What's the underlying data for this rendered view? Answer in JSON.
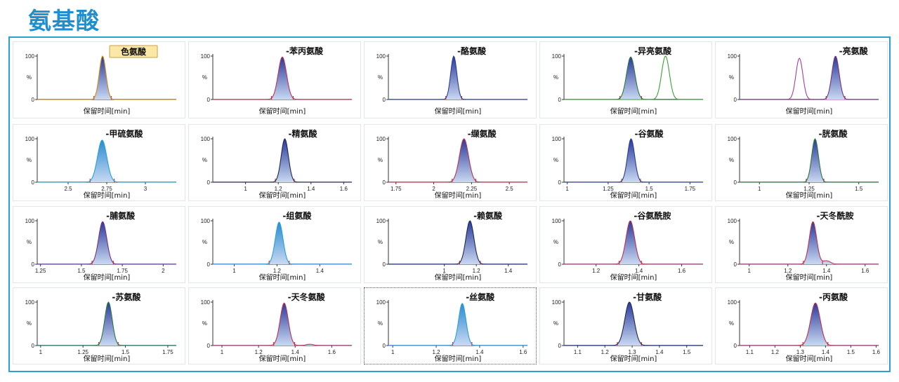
{
  "title": "氨基酸",
  "chart_data": [
    {
      "type": "line",
      "title": "色氨酸",
      "xlabel": "保留时间[min]",
      "ylabel": "%",
      "ytick_labels": [
        "0",
        "100"
      ],
      "xlim": [
        0,
        1
      ],
      "xticks": [],
      "xtick_labels": [],
      "label_boxed": true,
      "series": [
        {
          "color": "#2a3a9a",
          "peaks": [
            {
              "rt": 0.47,
              "sigma": 0.024,
              "height": 100
            }
          ],
          "fill": true,
          "stroke": "#d08a10"
        }
      ]
    },
    {
      "type": "line",
      "title": "苯丙氨酸",
      "xlabel": "保留时间[min]",
      "ylabel": "%",
      "ytick_labels": [
        "0",
        "100"
      ],
      "xlim": [
        0,
        1
      ],
      "xticks": [],
      "xtick_labels": [],
      "series": [
        {
          "color": "#2a3a9a",
          "peaks": [
            {
              "rt": 0.5,
              "sigma": 0.03,
              "height": 98
            }
          ],
          "fill": true,
          "stroke": "#c03050"
        }
      ]
    },
    {
      "type": "line",
      "title": "酪氨酸",
      "xlabel": "保留时间[min]",
      "ylabel": "%",
      "ytick_labels": [
        "0",
        "100"
      ],
      "xlim": [
        0,
        1
      ],
      "xticks": [],
      "xtick_labels": [],
      "series": [
        {
          "color": "#2a3a9a",
          "peaks": [
            {
              "rt": 0.47,
              "sigma": 0.022,
              "height": 100
            }
          ],
          "fill": true,
          "stroke": "#2a3a9a"
        }
      ]
    },
    {
      "type": "line",
      "title": "异亮氨酸",
      "xlabel": "保留时间[min]",
      "ylabel": "%",
      "ytick_labels": [
        "0",
        "100"
      ],
      "xlim": [
        0,
        1
      ],
      "xticks": [],
      "xtick_labels": [],
      "series": [
        {
          "color": "#2a3a9a",
          "peaks": [
            {
              "rt": 0.48,
              "sigma": 0.03,
              "height": 98
            }
          ],
          "fill": true,
          "stroke": "#2a7a3a"
        },
        {
          "color": "#3aa03a",
          "peaks": [
            {
              "rt": 0.73,
              "sigma": 0.028,
              "height": 100
            }
          ],
          "fill": false,
          "stroke": "#3aa03a"
        }
      ]
    },
    {
      "type": "line",
      "title": "亮氨酸",
      "xlabel": "保留时间[min]",
      "ylabel": "%",
      "ytick_labels": [
        "0",
        "100"
      ],
      "xlim": [
        0,
        1
      ],
      "xticks": [],
      "xtick_labels": [],
      "series": [
        {
          "color": "#a040a0",
          "peaks": [
            {
              "rt": 0.43,
              "sigma": 0.025,
              "height": 95
            }
          ],
          "fill": false,
          "stroke": "#a040a0"
        },
        {
          "color": "#2a3a9a",
          "peaks": [
            {
              "rt": 0.69,
              "sigma": 0.026,
              "height": 100
            }
          ],
          "fill": true,
          "stroke": "#7a3080"
        }
      ]
    },
    {
      "type": "line",
      "title": "甲硫氨酸",
      "xlabel": "保留时间[min]",
      "ylabel": "%",
      "ytick_labels": [
        "0",
        "100"
      ],
      "xlim": [
        2.3,
        3.2
      ],
      "xticks": [
        2.5,
        2.75,
        3
      ],
      "xtick_labels": [
        "2.5",
        "2.75",
        "3"
      ],
      "series": [
        {
          "color": "#2a8ad0",
          "peaks": [
            {
              "rt": 2.72,
              "sigma": 0.03,
              "height": 97
            }
          ],
          "fill": true,
          "stroke": "#28a0d8"
        }
      ]
    },
    {
      "type": "line",
      "title": "精氨酸",
      "xlabel": "保留时间[min]",
      "ylabel": "%",
      "ytick_labels": [
        "0",
        "100"
      ],
      "xlim": [
        0.8,
        1.65
      ],
      "xticks": [
        1,
        1.2,
        1.4,
        1.6
      ],
      "xtick_labels": [
        "1",
        "1.2",
        "1.4",
        "1.6"
      ],
      "series": [
        {
          "color": "#2a3a9a",
          "peaks": [
            {
              "rt": 1.24,
              "sigma": 0.022,
              "height": 100
            }
          ],
          "fill": true,
          "stroke": "#202850"
        }
      ]
    },
    {
      "type": "line",
      "title": "缬氨酸",
      "xlabel": "保留时间[min]",
      "ylabel": "%",
      "ytick_labels": [
        "0",
        "100"
      ],
      "xlim": [
        1.7,
        2.62
      ],
      "xticks": [
        1.75,
        2,
        2.25,
        2.5
      ],
      "xtick_labels": [
        "1.75",
        "2",
        "2.25",
        "2.5"
      ],
      "series": [
        {
          "color": "#2a3a9a",
          "peaks": [
            {
              "rt": 2.2,
              "sigma": 0.03,
              "height": 100
            }
          ],
          "fill": true,
          "stroke": "#c03050"
        }
      ]
    },
    {
      "type": "line",
      "title": "谷氨酸",
      "xlabel": "保留时间[min]",
      "ylabel": "%",
      "ytick_labels": [
        "0",
        "100"
      ],
      "xlim": [
        0.98,
        1.83
      ],
      "xticks": [
        1,
        1.25,
        1.5,
        1.75
      ],
      "xtick_labels": [
        "1",
        "1.25",
        "1.5",
        "1.75"
      ],
      "series": [
        {
          "color": "#2a3a9a",
          "peaks": [
            {
              "rt": 1.39,
              "sigma": 0.022,
              "height": 100
            }
          ],
          "fill": true,
          "stroke": "#2a3a9a"
        }
      ]
    },
    {
      "type": "line",
      "title": "胱氨酸",
      "xlabel": "保留时间[min]",
      "ylabel": "%",
      "ytick_labels": [
        "0",
        "100"
      ],
      "xlim": [
        0.9,
        1.6
      ],
      "xticks": [
        1,
        1.25,
        1.5
      ],
      "xtick_labels": [
        "1",
        "1.25",
        "1.5"
      ],
      "series": [
        {
          "color": "#2a3a9a",
          "peaks": [
            {
              "rt": 1.28,
              "sigma": 0.017,
              "height": 100
            }
          ],
          "fill": true,
          "stroke": "#2a7a3a"
        }
      ]
    },
    {
      "type": "line",
      "title": "脯氨酸",
      "xlabel": "保留时间[min]",
      "ylabel": "%",
      "ytick_labels": [
        "0",
        "100"
      ],
      "xlim": [
        1.23,
        2.08
      ],
      "xticks": [
        1.25,
        1.5,
        1.75,
        2
      ],
      "xtick_labels": [
        "1.25",
        "1.5",
        "1.75",
        "2"
      ],
      "series": [
        {
          "color": "#2a3a9a",
          "peaks": [
            {
              "rt": 1.63,
              "sigma": 0.025,
              "height": 98
            }
          ],
          "fill": true,
          "stroke": "#7a3080"
        }
      ]
    },
    {
      "type": "line",
      "title": "组氨酸",
      "xlabel": "保留时间[min]",
      "ylabel": "%",
      "ytick_labels": [
        "0",
        "100"
      ],
      "xlim": [
        0.9,
        1.55
      ],
      "xticks": [
        1,
        1.2,
        1.4
      ],
      "xtick_labels": [
        "1",
        "1.2",
        "1.4"
      ],
      "series": [
        {
          "color": "#2a8ad0",
          "peaks": [
            {
              "rt": 1.21,
              "sigma": 0.018,
              "height": 97
            }
          ],
          "fill": true,
          "stroke": "#28a0d8"
        }
      ]
    },
    {
      "type": "line",
      "title": "赖氨酸",
      "xlabel": "保留时间[min]",
      "ylabel": "%",
      "ytick_labels": [
        "0",
        "100"
      ],
      "xlim": [
        0.65,
        1.52
      ],
      "xticks": [
        1,
        1.2,
        1.4
      ],
      "xtick_labels": [
        "1",
        "1.2",
        "1.4"
      ],
      "series": [
        {
          "color": "#2a3a9a",
          "peaks": [
            {
              "rt": 1.16,
              "sigma": 0.025,
              "height": 100
            }
          ],
          "fill": true,
          "stroke": "#202850"
        }
      ]
    },
    {
      "type": "line",
      "title": "谷氨酰胺",
      "xlabel": "保留时间[min]",
      "ylabel": "%",
      "ytick_labels": [
        "0",
        "100"
      ],
      "xlim": [
        1.05,
        1.7
      ],
      "xticks": [
        1.2,
        1.4,
        1.6
      ],
      "xtick_labels": [
        "1.2",
        "1.4",
        "1.6"
      ],
      "series": [
        {
          "color": "#2a3a9a",
          "peaks": [
            {
              "rt": 1.36,
              "sigma": 0.02,
              "height": 100
            }
          ],
          "fill": true,
          "stroke": "#c03050"
        }
      ]
    },
    {
      "type": "line",
      "title": "天冬酰胺",
      "xlabel": "保留时间[min]",
      "ylabel": "%",
      "ytick_labels": [
        "0",
        "100"
      ],
      "xlim": [
        0.95,
        1.67
      ],
      "xticks": [
        1,
        1.2,
        1.4,
        1.6
      ],
      "xtick_labels": [
        "1",
        "1.2",
        "1.4",
        "1.6"
      ],
      "series": [
        {
          "color": "#2a3a9a",
          "peaks": [
            {
              "rt": 1.33,
              "sigma": 0.019,
              "height": 98
            },
            {
              "rt": 1.4,
              "sigma": 0.02,
              "height": 8
            }
          ],
          "fill": true,
          "stroke": "#c03050"
        }
      ]
    },
    {
      "type": "line",
      "title": "苏氨酸",
      "xlabel": "保留时间[min]",
      "ylabel": "%",
      "ytick_labels": [
        "0",
        "100"
      ],
      "xlim": [
        0.98,
        1.8
      ],
      "xticks": [
        1,
        1.25,
        1.5,
        1.75
      ],
      "xtick_labels": [
        "1",
        "1.25",
        "1.5",
        "1.75"
      ],
      "series": [
        {
          "color": "#2a3a9a",
          "peaks": [
            {
              "rt": 1.4,
              "sigma": 0.022,
              "height": 100
            }
          ],
          "fill": true,
          "stroke": "#2a7a3a"
        }
      ]
    },
    {
      "type": "line",
      "title": "天冬氨酸",
      "xlabel": "保留时间[min]",
      "ylabel": "%",
      "ytick_labels": [
        "0",
        "100"
      ],
      "xlim": [
        0.95,
        1.71
      ],
      "xticks": [
        1,
        1.2,
        1.4,
        1.6
      ],
      "xtick_labels": [
        "1",
        "1.2",
        "1.4",
        "1.6"
      ],
      "series": [
        {
          "color": "#2a3a9a",
          "peaks": [
            {
              "rt": 1.34,
              "sigma": 0.022,
              "height": 98
            },
            {
              "rt": 1.48,
              "sigma": 0.02,
              "height": 3
            }
          ],
          "fill": true,
          "stroke": "#c03050"
        }
      ]
    },
    {
      "type": "line",
      "title": "丝氨酸",
      "xlabel": "保留时间[min]",
      "ylabel": "%",
      "ytick_labels": [
        "0",
        "100"
      ],
      "xlim": [
        0.98,
        1.62
      ],
      "xticks": [
        1,
        1.2,
        1.4,
        1.6
      ],
      "xtick_labels": [
        "1",
        "1.2",
        "1.4",
        "1.6"
      ],
      "selected": true,
      "series": [
        {
          "color": "#2a8ad0",
          "peaks": [
            {
              "rt": 1.32,
              "sigma": 0.017,
              "height": 97
            }
          ],
          "fill": true,
          "stroke": "#28a0d8"
        }
      ]
    },
    {
      "type": "line",
      "title": "甘氨酸",
      "xlabel": "保留时间[min]",
      "ylabel": "%",
      "ytick_labels": [
        "0",
        "100"
      ],
      "xlim": [
        1.05,
        1.56
      ],
      "xticks": [
        1.1,
        1.2,
        1.3,
        1.4,
        1.5
      ],
      "xtick_labels": [
        "1.1",
        "1.2",
        "1.3",
        "1.4",
        "1.5"
      ],
      "series": [
        {
          "color": "#2a3a9a",
          "peaks": [
            {
              "rt": 1.29,
              "sigma": 0.017,
              "height": 100
            }
          ],
          "fill": true,
          "stroke": "#202850"
        }
      ]
    },
    {
      "type": "line",
      "title": "丙氨酸",
      "xlabel": "保留时间[min]",
      "ylabel": "%",
      "ytick_labels": [
        "0",
        "100"
      ],
      "xlim": [
        1.06,
        1.61
      ],
      "xticks": [
        1.1,
        1.2,
        1.3,
        1.4,
        1.5,
        1.6
      ],
      "xtick_labels": [
        "1.1",
        "1.2",
        "1.3",
        "1.4",
        "1.5",
        "1.6"
      ],
      "series": [
        {
          "color": "#2a3a9a",
          "peaks": [
            {
              "rt": 1.36,
              "sigma": 0.019,
              "height": 98
            }
          ],
          "fill": true,
          "stroke": "#c03050"
        }
      ]
    }
  ]
}
